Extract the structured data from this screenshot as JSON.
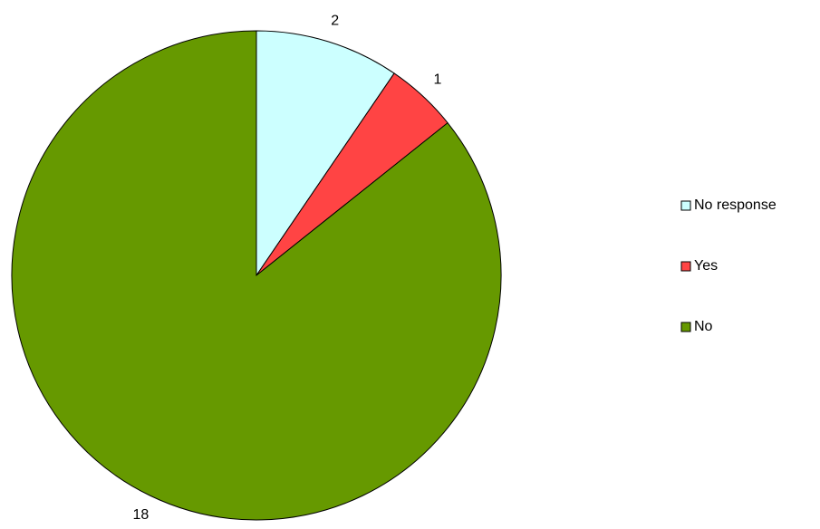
{
  "chart_data": {
    "type": "pie",
    "categories": [
      "No response",
      "Yes",
      "No"
    ],
    "values": [
      2,
      1,
      18
    ],
    "colors": [
      "#ccffff",
      "#ff4444",
      "#669900"
    ],
    "legend": "right"
  }
}
